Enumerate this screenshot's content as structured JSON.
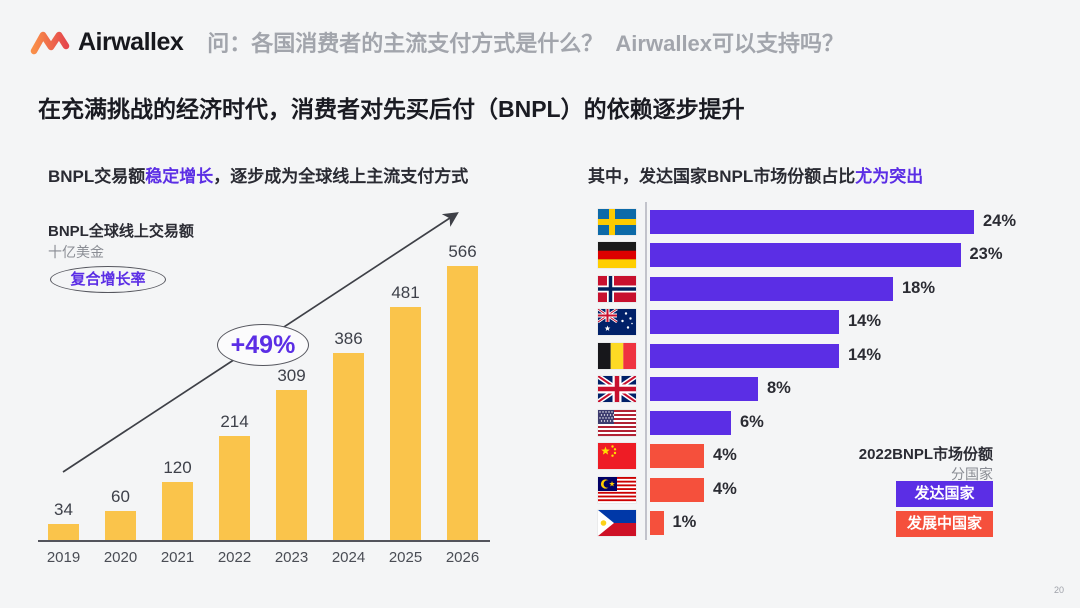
{
  "header": {
    "brand": "Airwallex",
    "question_primary": "问：各国消费者的主流支付方式是什么？",
    "question_secondary": "Airwallex可以支持吗？"
  },
  "title": "在充满挑战的经济时代，消费者对先买后付（BNPL）的依赖逐步提升",
  "page_number": "20",
  "colors": {
    "accent_purple": "#5B2EE5",
    "accent_red": "#F5503C",
    "bar_yellow": "#FAC44B",
    "text_dark": "#2A2B33",
    "text_gray": "#A2A5AC"
  },
  "chart_data": [
    {
      "type": "bar",
      "title_parts": [
        "BNPL交易额",
        "稳定增长",
        "，逐步成为全球线上主流支付方式"
      ],
      "series_label": "BNPL全球线上交易额",
      "unit": "十亿美金",
      "badge": "复合增长率",
      "annotation": "+49%",
      "categories": [
        "2019",
        "2020",
        "2021",
        "2022",
        "2023",
        "2024",
        "2025",
        "2026"
      ],
      "values": [
        34,
        60,
        120,
        214,
        309,
        386,
        481,
        566
      ],
      "ylim": [
        0,
        600
      ],
      "bar_color": "#FAC44B",
      "legend_position": "none",
      "grid": false
    },
    {
      "type": "bar",
      "orientation": "horizontal",
      "title_parts": [
        "其中，发达国家BNPL市场份额占比",
        "尤为突出"
      ],
      "xlim": [
        0,
        26
      ],
      "rows": [
        {
          "country": "sweden",
          "value": 24,
          "label": "24%",
          "group": "developed"
        },
        {
          "country": "germany",
          "value": 23,
          "label": "23%",
          "group": "developed"
        },
        {
          "country": "norway",
          "value": 18,
          "label": "18%",
          "group": "developed"
        },
        {
          "country": "australia",
          "value": 14,
          "label": "14%",
          "group": "developed"
        },
        {
          "country": "belgium",
          "value": 14,
          "label": "14%",
          "group": "developed"
        },
        {
          "country": "uk",
          "value": 8,
          "label": "8%",
          "group": "developed"
        },
        {
          "country": "usa",
          "value": 6,
          "label": "6%",
          "group": "developed"
        },
        {
          "country": "china",
          "value": 4,
          "label": "4%",
          "group": "developing"
        },
        {
          "country": "malaysia",
          "value": 4,
          "label": "4%",
          "group": "developing"
        },
        {
          "country": "philippines",
          "value": 1,
          "label": "1%",
          "group": "developing"
        }
      ],
      "group_colors": {
        "developed": "#5B2EE5",
        "developing": "#F5503C"
      },
      "legend": {
        "title": "2022BNPL市场份额",
        "subtitle": "分国家",
        "items": [
          {
            "label": "发达国家",
            "group": "developed"
          },
          {
            "label": "发展中国家",
            "group": "developing"
          }
        ]
      }
    }
  ]
}
